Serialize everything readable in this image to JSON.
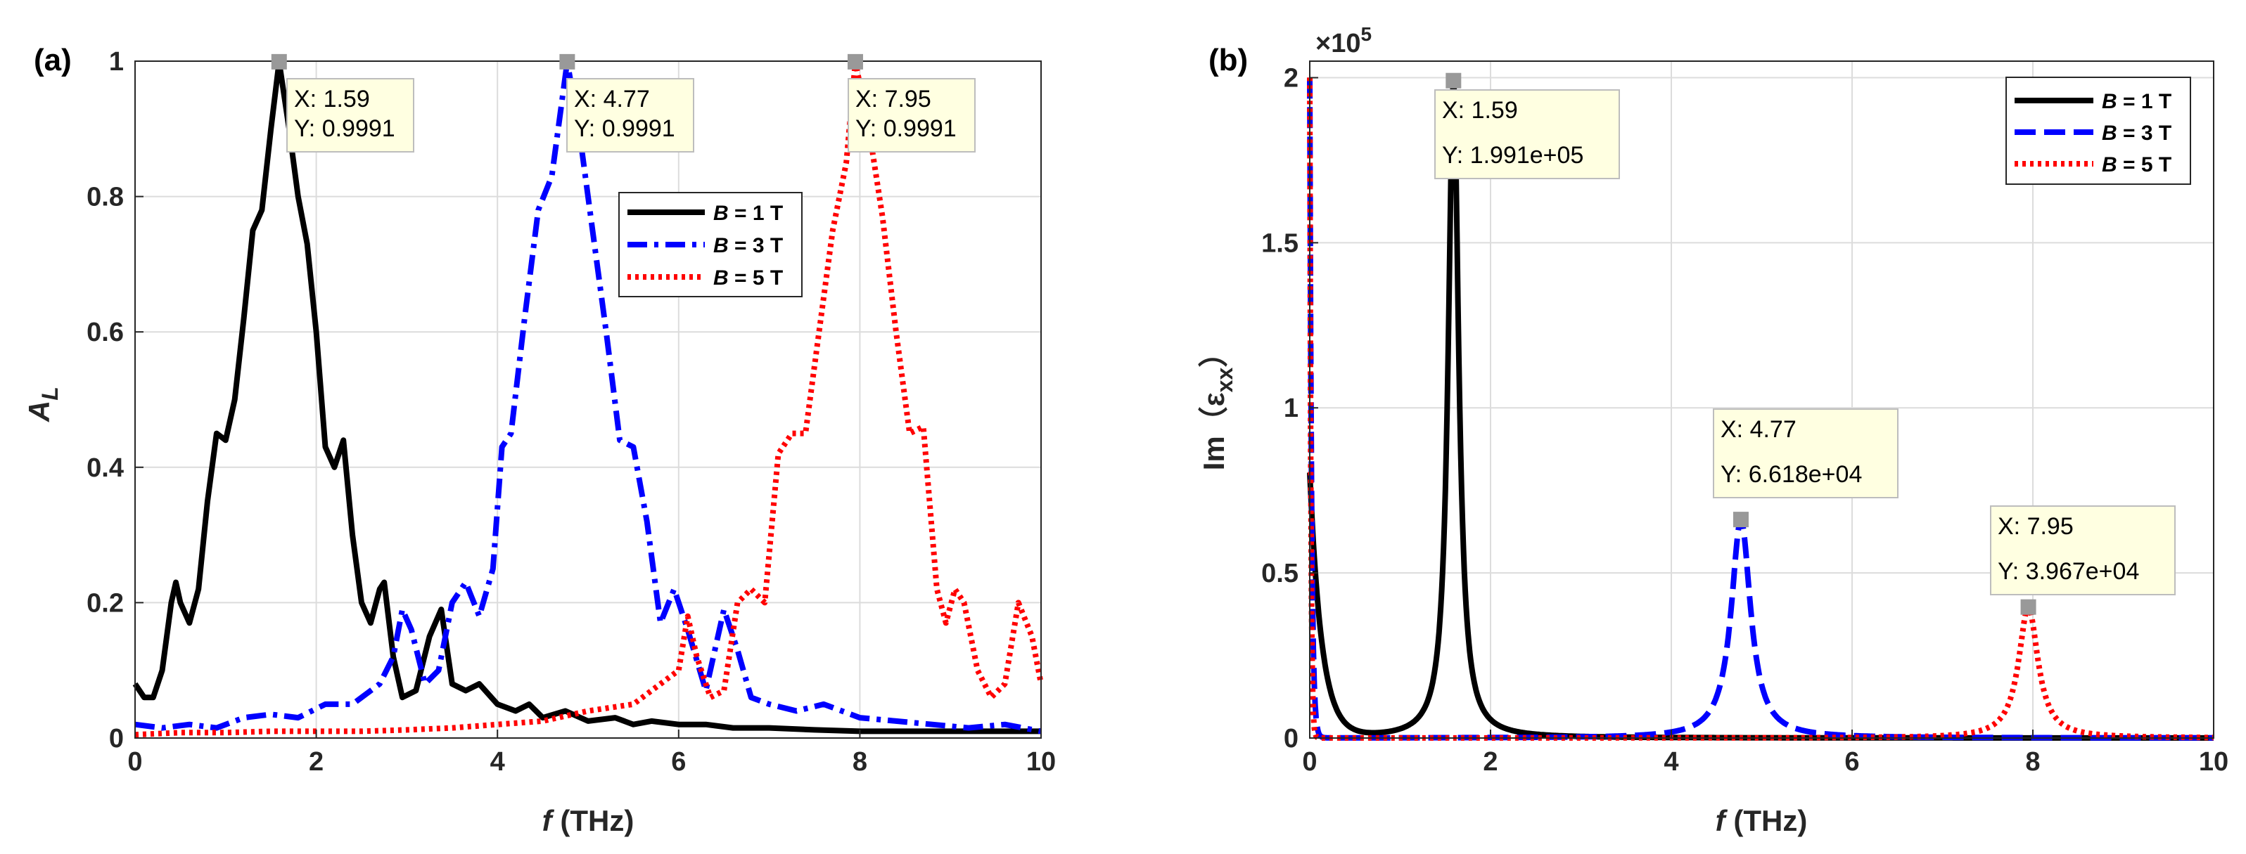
{
  "chart_data": [
    {
      "panel_label": "(a)",
      "type": "line",
      "xlabel_italic": "f",
      "xlabel_rest": " (THz)",
      "ylabel_main": "A",
      "ylabel_sub": "L",
      "xlim": [
        0,
        10
      ],
      "ylim": [
        0,
        1
      ],
      "grid": true,
      "xticks": [
        "0",
        "2",
        "4",
        "6",
        "8",
        "10"
      ],
      "yticks": [
        "0",
        "0.2",
        "0.4",
        "0.6",
        "0.8",
        "1"
      ],
      "legend_position": "middle-right",
      "series": [
        {
          "name": "B = 1 T",
          "legend_italic": "B",
          "legend_rest": " = 1 T",
          "color": "#000000",
          "style": "solid",
          "x": [
            0,
            0.1,
            0.2,
            0.3,
            0.4,
            0.45,
            0.5,
            0.6,
            0.7,
            0.8,
            0.9,
            1.0,
            1.1,
            1.2,
            1.3,
            1.4,
            1.5,
            1.59,
            1.7,
            1.8,
            1.9,
            2.0,
            2.1,
            2.2,
            2.3,
            2.4,
            2.5,
            2.6,
            2.7,
            2.75,
            2.85,
            2.95,
            3.1,
            3.25,
            3.38,
            3.5,
            3.65,
            3.8,
            4.0,
            4.2,
            4.35,
            4.5,
            4.75,
            5.0,
            5.3,
            5.5,
            5.7,
            6.0,
            6.3,
            6.6,
            7.0,
            7.5,
            8.0,
            8.5,
            9.0,
            9.5,
            10.0
          ],
          "y": [
            0.08,
            0.06,
            0.06,
            0.1,
            0.2,
            0.23,
            0.2,
            0.17,
            0.22,
            0.35,
            0.45,
            0.44,
            0.5,
            0.62,
            0.75,
            0.78,
            0.9,
            0.9991,
            0.9,
            0.8,
            0.73,
            0.6,
            0.43,
            0.4,
            0.44,
            0.3,
            0.2,
            0.17,
            0.22,
            0.23,
            0.12,
            0.06,
            0.07,
            0.15,
            0.19,
            0.08,
            0.07,
            0.08,
            0.05,
            0.04,
            0.05,
            0.03,
            0.04,
            0.025,
            0.03,
            0.02,
            0.025,
            0.02,
            0.02,
            0.015,
            0.015,
            0.012,
            0.01,
            0.01,
            0.01,
            0.01,
            0.01
          ]
        },
        {
          "name": "B = 3 T",
          "legend_italic": "B",
          "legend_rest": " = 3 T",
          "color": "#0000ff",
          "style": "dashdot",
          "x": [
            0,
            0.3,
            0.6,
            0.9,
            1.2,
            1.5,
            1.8,
            2.1,
            2.4,
            2.7,
            2.85,
            2.95,
            3.05,
            3.2,
            3.35,
            3.5,
            3.65,
            3.8,
            3.95,
            4.05,
            4.15,
            4.3,
            4.45,
            4.6,
            4.77,
            4.9,
            5.05,
            5.2,
            5.35,
            5.5,
            5.65,
            5.8,
            5.95,
            6.1,
            6.3,
            6.5,
            6.65,
            6.8,
            7.0,
            7.3,
            7.6,
            8.0,
            8.4,
            8.8,
            9.2,
            9.6,
            10.0
          ],
          "y": [
            0.02,
            0.015,
            0.02,
            0.015,
            0.03,
            0.035,
            0.03,
            0.05,
            0.05,
            0.08,
            0.12,
            0.19,
            0.16,
            0.08,
            0.1,
            0.2,
            0.23,
            0.18,
            0.25,
            0.43,
            0.45,
            0.62,
            0.78,
            0.83,
            0.9991,
            0.9,
            0.75,
            0.6,
            0.44,
            0.43,
            0.32,
            0.17,
            0.22,
            0.16,
            0.07,
            0.19,
            0.13,
            0.06,
            0.05,
            0.04,
            0.05,
            0.03,
            0.025,
            0.02,
            0.015,
            0.02,
            0.01
          ]
        },
        {
          "name": "B = 5 T",
          "legend_italic": "B",
          "legend_rest": " = 5 T",
          "color": "#ff0000",
          "style": "dotted",
          "x": [
            0,
            0.5,
            1.0,
            1.5,
            2.0,
            2.5,
            3.0,
            3.5,
            4.0,
            4.5,
            5.0,
            5.5,
            5.8,
            6.0,
            6.1,
            6.2,
            6.35,
            6.5,
            6.65,
            6.8,
            6.95,
            7.1,
            7.25,
            7.4,
            7.55,
            7.7,
            7.85,
            7.95,
            8.1,
            8.25,
            8.4,
            8.55,
            8.7,
            8.85,
            8.95,
            9.05,
            9.15,
            9.3,
            9.45,
            9.6,
            9.75,
            9.9,
            10.0
          ],
          "y": [
            0.005,
            0.008,
            0.008,
            0.01,
            0.01,
            0.01,
            0.012,
            0.015,
            0.02,
            0.025,
            0.04,
            0.05,
            0.08,
            0.1,
            0.18,
            0.12,
            0.06,
            0.07,
            0.2,
            0.22,
            0.2,
            0.42,
            0.45,
            0.45,
            0.6,
            0.75,
            0.85,
            0.9991,
            0.9,
            0.77,
            0.6,
            0.45,
            0.46,
            0.22,
            0.17,
            0.22,
            0.2,
            0.1,
            0.06,
            0.08,
            0.2,
            0.15,
            0.08
          ]
        }
      ],
      "datatips": [
        {
          "x": 1.59,
          "y": 0.9991,
          "x_label": "X: 1.59",
          "y_label": "Y: 0.9991"
        },
        {
          "x": 4.77,
          "y": 0.9991,
          "x_label": "X: 4.77",
          "y_label": "Y: 0.9991"
        },
        {
          "x": 7.95,
          "y": 0.9991,
          "x_label": "X: 7.95",
          "y_label": "Y: 0.9991"
        }
      ]
    },
    {
      "panel_label": "(b)",
      "type": "line",
      "xlabel_italic": "f",
      "xlabel_rest": " (THz)",
      "ylabel_main": "Im（ε",
      "ylabel_sub": "xx",
      "ylabel_close": "）",
      "exponent_base": "×10",
      "exponent_power": "5",
      "xlim": [
        0,
        10
      ],
      "ylim": [
        0,
        2.05
      ],
      "grid": true,
      "xticks": [
        "0",
        "2",
        "4",
        "6",
        "8",
        "10"
      ],
      "yticks": [
        "0",
        "0.5",
        "1",
        "1.5",
        "2"
      ],
      "legend_position": "top-right",
      "series": [
        {
          "name": "B = 1 T",
          "legend_italic": "B",
          "legend_rest": " = 1 T",
          "color": "#000000",
          "style": "solid",
          "peak": 1.59,
          "height": 1.991,
          "width": 0.07,
          "tail_amp": 0.8,
          "tail_decay": 0.13
        },
        {
          "name": "B = 3 T",
          "legend_italic": "B",
          "legend_rest": " = 3 T",
          "color": "#0000ff",
          "style": "dashed",
          "peak": 4.77,
          "height": 0.6618,
          "width": 0.13,
          "tail_amp": 2.0,
          "tail_decay": 0.02
        },
        {
          "name": "B = 5 T",
          "legend_italic": "B",
          "legend_rest": " = 5 T",
          "color": "#ff0000",
          "style": "dotted",
          "peak": 7.95,
          "height": 0.3967,
          "width": 0.13,
          "tail_amp": 2.0,
          "tail_decay": 0.012
        }
      ],
      "datatips": [
        {
          "x": 1.59,
          "y": 1.991,
          "x_label": "X: 1.59",
          "y_label": "Y: 1.991e+05"
        },
        {
          "x": 4.77,
          "y": 0.6618,
          "x_label": "X: 4.77",
          "y_label": "Y: 6.618e+04"
        },
        {
          "x": 7.95,
          "y": 0.3967,
          "x_label": "X: 7.95",
          "y_label": "Y: 3.967e+04"
        }
      ]
    }
  ]
}
